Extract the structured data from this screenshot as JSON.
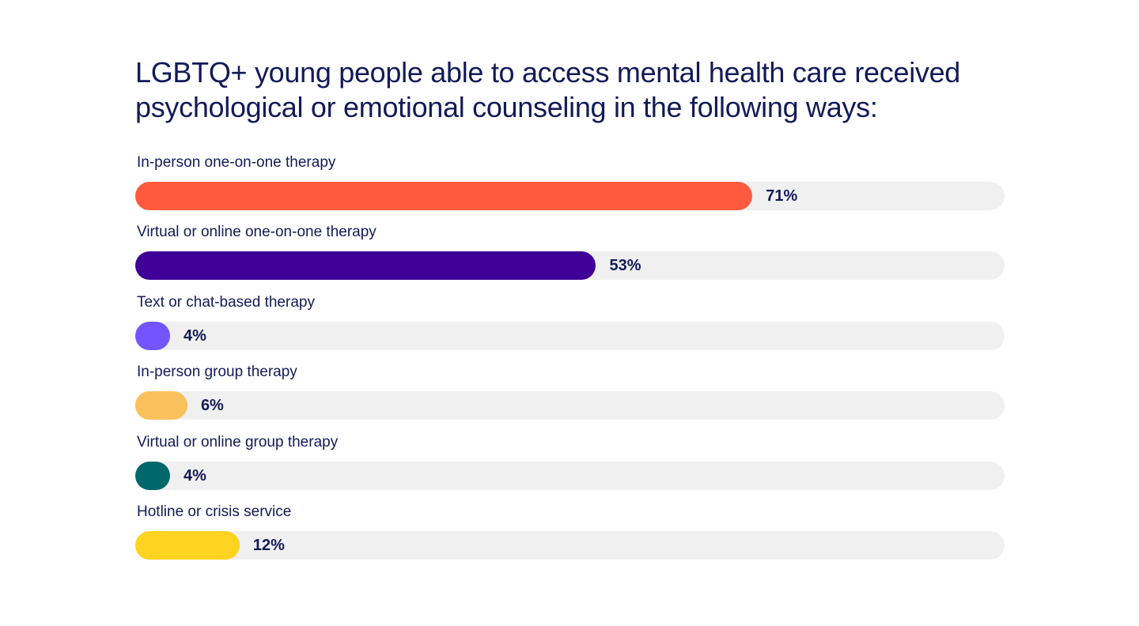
{
  "chart_data": {
    "type": "bar",
    "orientation": "horizontal",
    "title": "LGBTQ+ young people able to access mental health care received psychological or emotional counseling in the following ways:",
    "unit": "%",
    "xlim": [
      0,
      100
    ],
    "grid": false,
    "legend": "none",
    "track_color": "#F0F0F0",
    "text_color": "#131A57",
    "categories": [
      "In-person one-on-one therapy",
      "Virtual or online one-on-one therapy",
      "Text or chat-based therapy",
      "In-person group therapy",
      "Virtual or online group therapy",
      "Hotline or crisis service"
    ],
    "values": [
      71,
      53,
      4,
      6,
      4,
      12
    ],
    "value_labels": [
      "71%",
      "53%",
      "4%",
      "6%",
      "4%",
      "12%"
    ],
    "colors": [
      "#FF5A3D",
      "#3F0097",
      "#7354FF",
      "#F9C05C",
      "#00686B",
      "#FFD31F"
    ]
  }
}
